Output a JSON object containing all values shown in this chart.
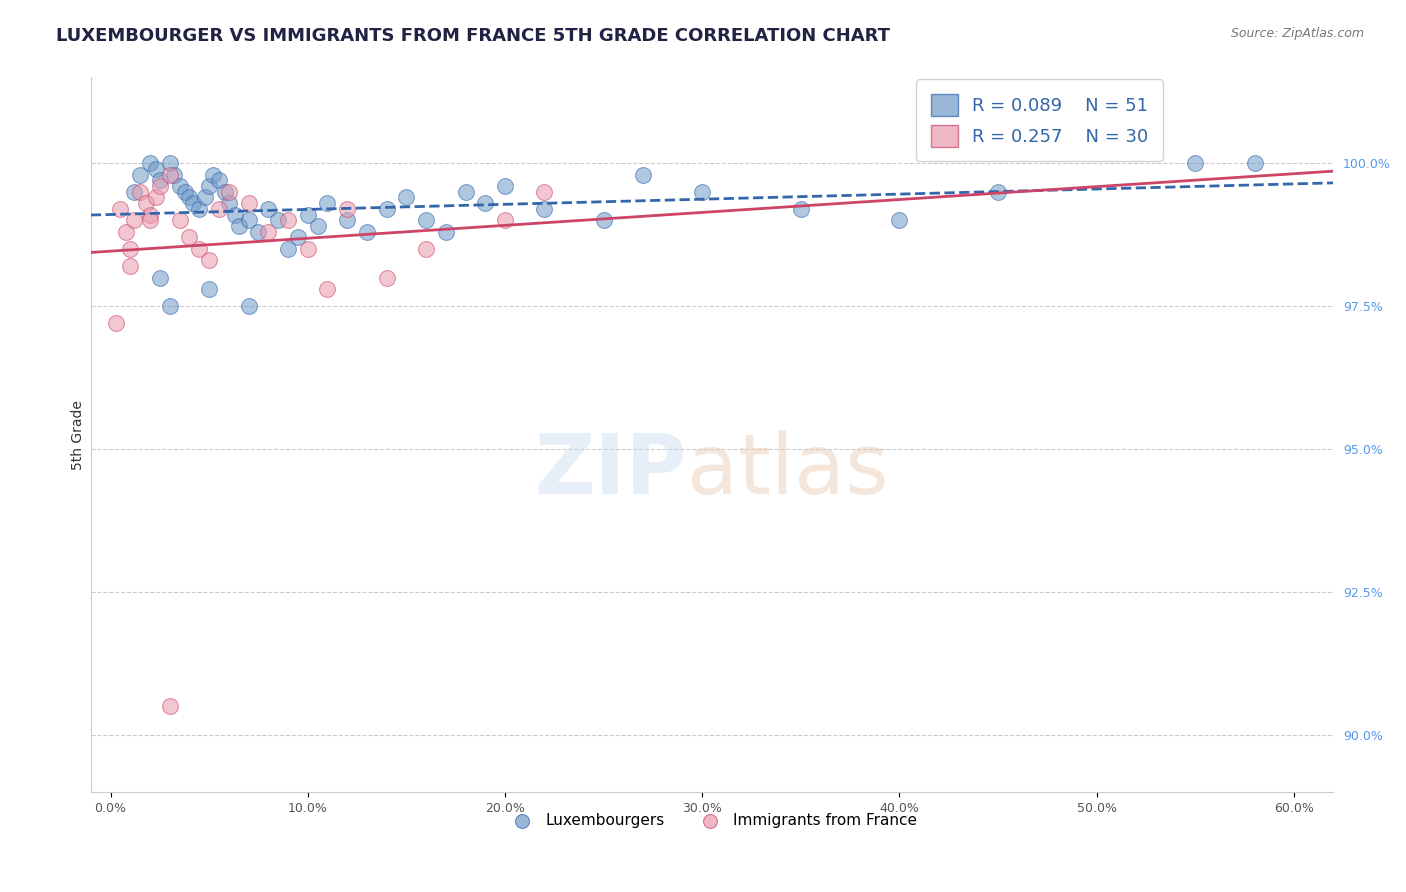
{
  "title": "LUXEMBOURGER VS IMMIGRANTS FROM FRANCE 5TH GRADE CORRELATION CHART",
  "source": "Source: ZipAtlas.com",
  "xlabel_ticks": [
    "0.0%",
    "10.0%",
    "20.0%",
    "30.0%",
    "40.0%",
    "50.0%",
    "60.0%"
  ],
  "xlabel_vals": [
    0.0,
    10.0,
    20.0,
    30.0,
    40.0,
    50.0,
    60.0
  ],
  "ylabel": "5th Grade",
  "ylim": [
    89.0,
    101.5
  ],
  "xlim": [
    -1.0,
    62.0
  ],
  "ytick_vals": [
    90.0,
    92.5,
    95.0,
    97.5,
    100.0
  ],
  "ytick_labels": [
    "90.0%",
    "92.5%",
    "95.0%",
    "97.5%",
    "100.0%"
  ],
  "blue_R": 0.089,
  "blue_N": 51,
  "pink_R": 0.257,
  "pink_N": 30,
  "blue_color": "#7099C8",
  "pink_color": "#E89AAE",
  "blue_line_color": "#3366AA",
  "pink_line_color": "#CC4466",
  "blue_scatter_x": [
    1.2,
    1.5,
    2.0,
    2.3,
    2.5,
    3.0,
    3.2,
    3.5,
    3.8,
    4.0,
    4.2,
    4.5,
    4.8,
    5.0,
    5.2,
    5.5,
    5.8,
    6.0,
    6.3,
    6.5,
    7.0,
    7.5,
    8.0,
    8.5,
    9.0,
    9.5,
    10.0,
    10.5,
    11.0,
    12.0,
    13.0,
    14.0,
    15.0,
    16.0,
    17.0,
    18.0,
    19.0,
    20.0,
    22.0,
    25.0,
    27.0,
    30.0,
    35.0,
    40.0,
    45.0,
    55.0,
    58.0,
    3.0,
    5.0,
    7.0,
    2.5
  ],
  "blue_scatter_y": [
    99.5,
    99.8,
    100.0,
    99.9,
    99.7,
    100.0,
    99.8,
    99.6,
    99.5,
    99.4,
    99.3,
    99.2,
    99.4,
    99.6,
    99.8,
    99.7,
    99.5,
    99.3,
    99.1,
    98.9,
    99.0,
    98.8,
    99.2,
    99.0,
    98.5,
    98.7,
    99.1,
    98.9,
    99.3,
    99.0,
    98.8,
    99.2,
    99.4,
    99.0,
    98.8,
    99.5,
    99.3,
    99.6,
    99.2,
    99.0,
    99.8,
    99.5,
    99.2,
    99.0,
    99.5,
    100.0,
    100.0,
    97.5,
    97.8,
    97.5,
    98.0
  ],
  "pink_scatter_x": [
    0.5,
    0.8,
    1.0,
    1.2,
    1.5,
    1.8,
    2.0,
    2.3,
    2.5,
    3.0,
    3.5,
    4.0,
    4.5,
    5.0,
    5.5,
    6.0,
    7.0,
    8.0,
    9.0,
    10.0,
    11.0,
    12.0,
    14.0,
    16.0,
    20.0,
    22.0,
    0.3,
    1.0,
    2.0,
    3.0
  ],
  "pink_scatter_y": [
    99.2,
    98.8,
    98.5,
    99.0,
    99.5,
    99.3,
    99.1,
    99.4,
    99.6,
    99.8,
    99.0,
    98.7,
    98.5,
    98.3,
    99.2,
    99.5,
    99.3,
    98.8,
    99.0,
    98.5,
    97.8,
    99.2,
    98.0,
    98.5,
    99.0,
    99.5,
    97.2,
    98.2,
    99.0,
    90.5
  ],
  "title_fontsize": 13,
  "axis_label_fontsize": 10,
  "tick_fontsize": 9,
  "legend_fontsize": 13
}
